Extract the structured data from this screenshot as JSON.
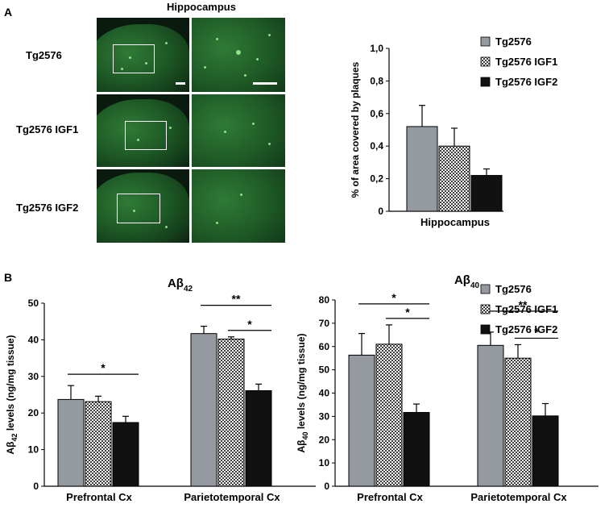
{
  "panel_a": {
    "label": "A",
    "title": "Hippocampus",
    "rows": [
      {
        "label": "Tg2576"
      },
      {
        "label": "Tg2576 IGF1"
      },
      {
        "label": "Tg2576 IGF2"
      }
    ]
  },
  "panel_b": {
    "label": "B"
  },
  "colors": {
    "tg2576": "#959aa0",
    "igf1_pattern": "checker",
    "igf2": "#111111",
    "fluorescence": "#2f7a37",
    "background_micrograph": "#0b1a0e"
  },
  "chart_data": [
    {
      "id": "plaque_area",
      "type": "bar",
      "title": "",
      "ylabel": "% of area covered by plaques",
      "xlabel": "",
      "categories": [
        "Hippocampus"
      ],
      "ylim": [
        0,
        1.0
      ],
      "yticks": [
        "0",
        "0,2",
        "0,4",
        "0,6",
        "0,8",
        "1,0"
      ],
      "series": [
        {
          "name": "Tg2576",
          "values": [
            0.52
          ],
          "errors": [
            0.13
          ]
        },
        {
          "name": "Tg2576 IGF1",
          "values": [
            0.4
          ],
          "errors": [
            0.11
          ]
        },
        {
          "name": "Tg2576 IGF2",
          "values": [
            0.22
          ],
          "errors": [
            0.04
          ]
        }
      ],
      "legend": "top-right",
      "grid": false
    },
    {
      "id": "abeta42",
      "type": "bar",
      "title": "Aβ",
      "title_sub": "42",
      "ylabel": "Aβ",
      "ylabel_sub": "42",
      "ylabel_rest": " levels (ng/mg tissue)",
      "xlabel": "",
      "categories": [
        "Prefrontal Cx",
        "Parietotemporal Cx"
      ],
      "ylim": [
        0,
        50
      ],
      "yticks": [
        "0",
        "10",
        "20",
        "30",
        "40",
        "50"
      ],
      "series": [
        {
          "name": "Tg2576",
          "values": [
            23.7,
            41.7
          ],
          "errors": [
            3.8,
            2.0
          ]
        },
        {
          "name": "Tg2576 IGF1",
          "values": [
            23.1,
            40.2
          ],
          "errors": [
            1.5,
            0.6
          ]
        },
        {
          "name": "Tg2576 IGF2",
          "values": [
            17.4,
            26.1
          ],
          "errors": [
            1.7,
            1.8
          ]
        }
      ],
      "significance": [
        {
          "category": 0,
          "from": 0,
          "to": 2,
          "label": "*"
        },
        {
          "category": 1,
          "from": 0,
          "to": 2,
          "label": "**"
        },
        {
          "category": 1,
          "from": 1,
          "to": 2,
          "label": "*"
        }
      ],
      "grid": false
    },
    {
      "id": "abeta40",
      "type": "bar",
      "title": "Aβ",
      "title_sub": "40",
      "ylabel": "Aβ",
      "ylabel_sub": "40",
      "ylabel_rest": " levels (ng/mg tissue)",
      "xlabel": "",
      "categories": [
        "Prefrontal Cx",
        "Parietotemporal Cx"
      ],
      "ylim": [
        0,
        80
      ],
      "yticks": [
        "0",
        "10",
        "20",
        "30",
        "40",
        "50",
        "60",
        "70",
        "80"
      ],
      "series": [
        {
          "name": "Tg2576",
          "values": [
            56.3,
            60.5
          ],
          "errors": [
            9.3,
            5.7
          ]
        },
        {
          "name": "Tg2576 IGF1",
          "values": [
            61.0,
            55.0
          ],
          "errors": [
            8.3,
            5.8
          ]
        },
        {
          "name": "Tg2576 IGF2",
          "values": [
            31.7,
            30.2
          ],
          "errors": [
            3.6,
            5.3
          ]
        }
      ],
      "significance": [
        {
          "category": 0,
          "from": 0,
          "to": 2,
          "label": "*"
        },
        {
          "category": 0,
          "from": 1,
          "to": 2,
          "label": "*"
        },
        {
          "category": 1,
          "from": 0,
          "to": 2,
          "label": "**"
        },
        {
          "category": 1,
          "from": 1,
          "to": 2,
          "label": "*"
        }
      ],
      "legend": "top-right",
      "grid": false
    }
  ]
}
